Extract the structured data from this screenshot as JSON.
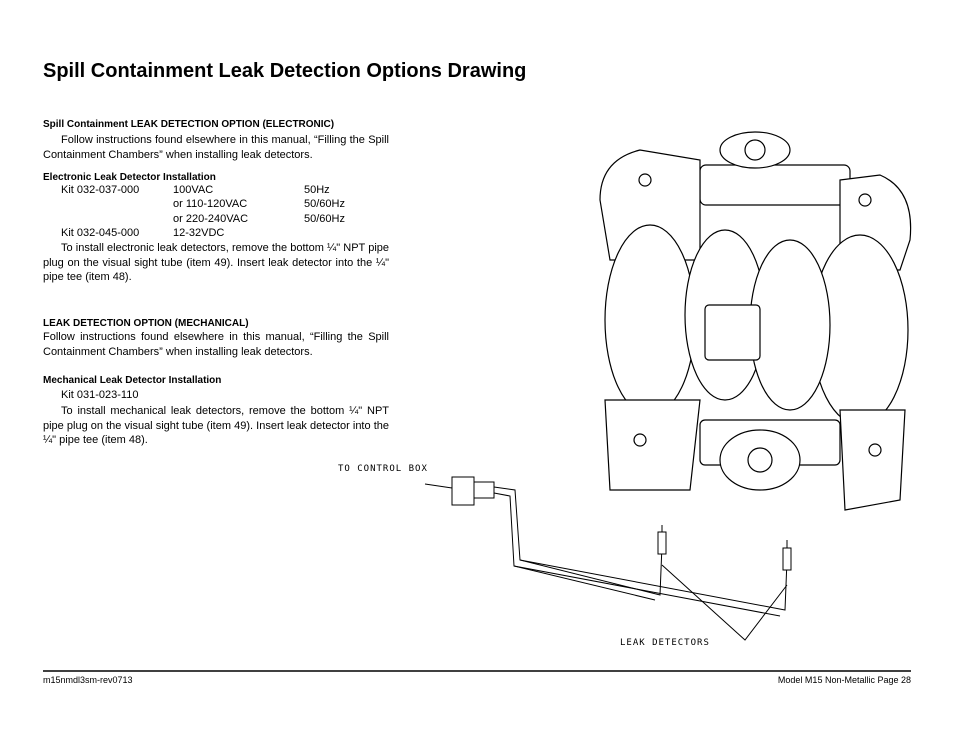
{
  "title": "Spill Containment Leak Detection Options Drawing",
  "electronic": {
    "heading": "Spill Containment LEAK DETECTION OPTION  (ELECTRONIC)",
    "intro": "Follow instructions found elsewhere in this manual, “Filling the Spill Containment Chambers” when installing leak detectors.",
    "subheading": "Electronic Leak Detector Installation",
    "kits": [
      {
        "kit": "Kit 032-037-000",
        "voltage": "100VAC",
        "frequency": "50Hz"
      },
      {
        "voltage": "or 110-120VAC",
        "frequency": "50/60Hz"
      },
      {
        "voltage": "or 220-240VAC",
        "frequency": "50/60Hz"
      },
      {
        "kit": "Kit 032-045-000",
        "voltage": "12-32VDC"
      }
    ],
    "body": "To install electronic leak detectors, remove the bottom ¼\" NPT pipe plug on the visual sight tube (item 49). Insert leak detector into the ¼\" pipe tee (item 48)."
  },
  "mechanical": {
    "heading": "LEAK DETECTION OPTION  (MECHANICAL)",
    "intro": "Follow instructions found elsewhere in this manual, “Filling the Spill Containment Chambers” when installing leak detectors.",
    "subheading": "Mechanical Leak Detector Installation",
    "kit": "Kit 031-023-110",
    "body": "To install mechanical leak detectors, remove the bottom ¼\" NPT pipe plug on the visual sight tube (item 49). Insert leak detector into the ¼\" pipe tee (item 48)."
  },
  "drawing": {
    "control_box_label": "TO CONTROL BOX",
    "detectors_label": "LEAK DETECTORS"
  },
  "footer": {
    "left": "m15nmdl3sm-rev0713",
    "right": "Model M15 Non-Metallic Page 28"
  }
}
